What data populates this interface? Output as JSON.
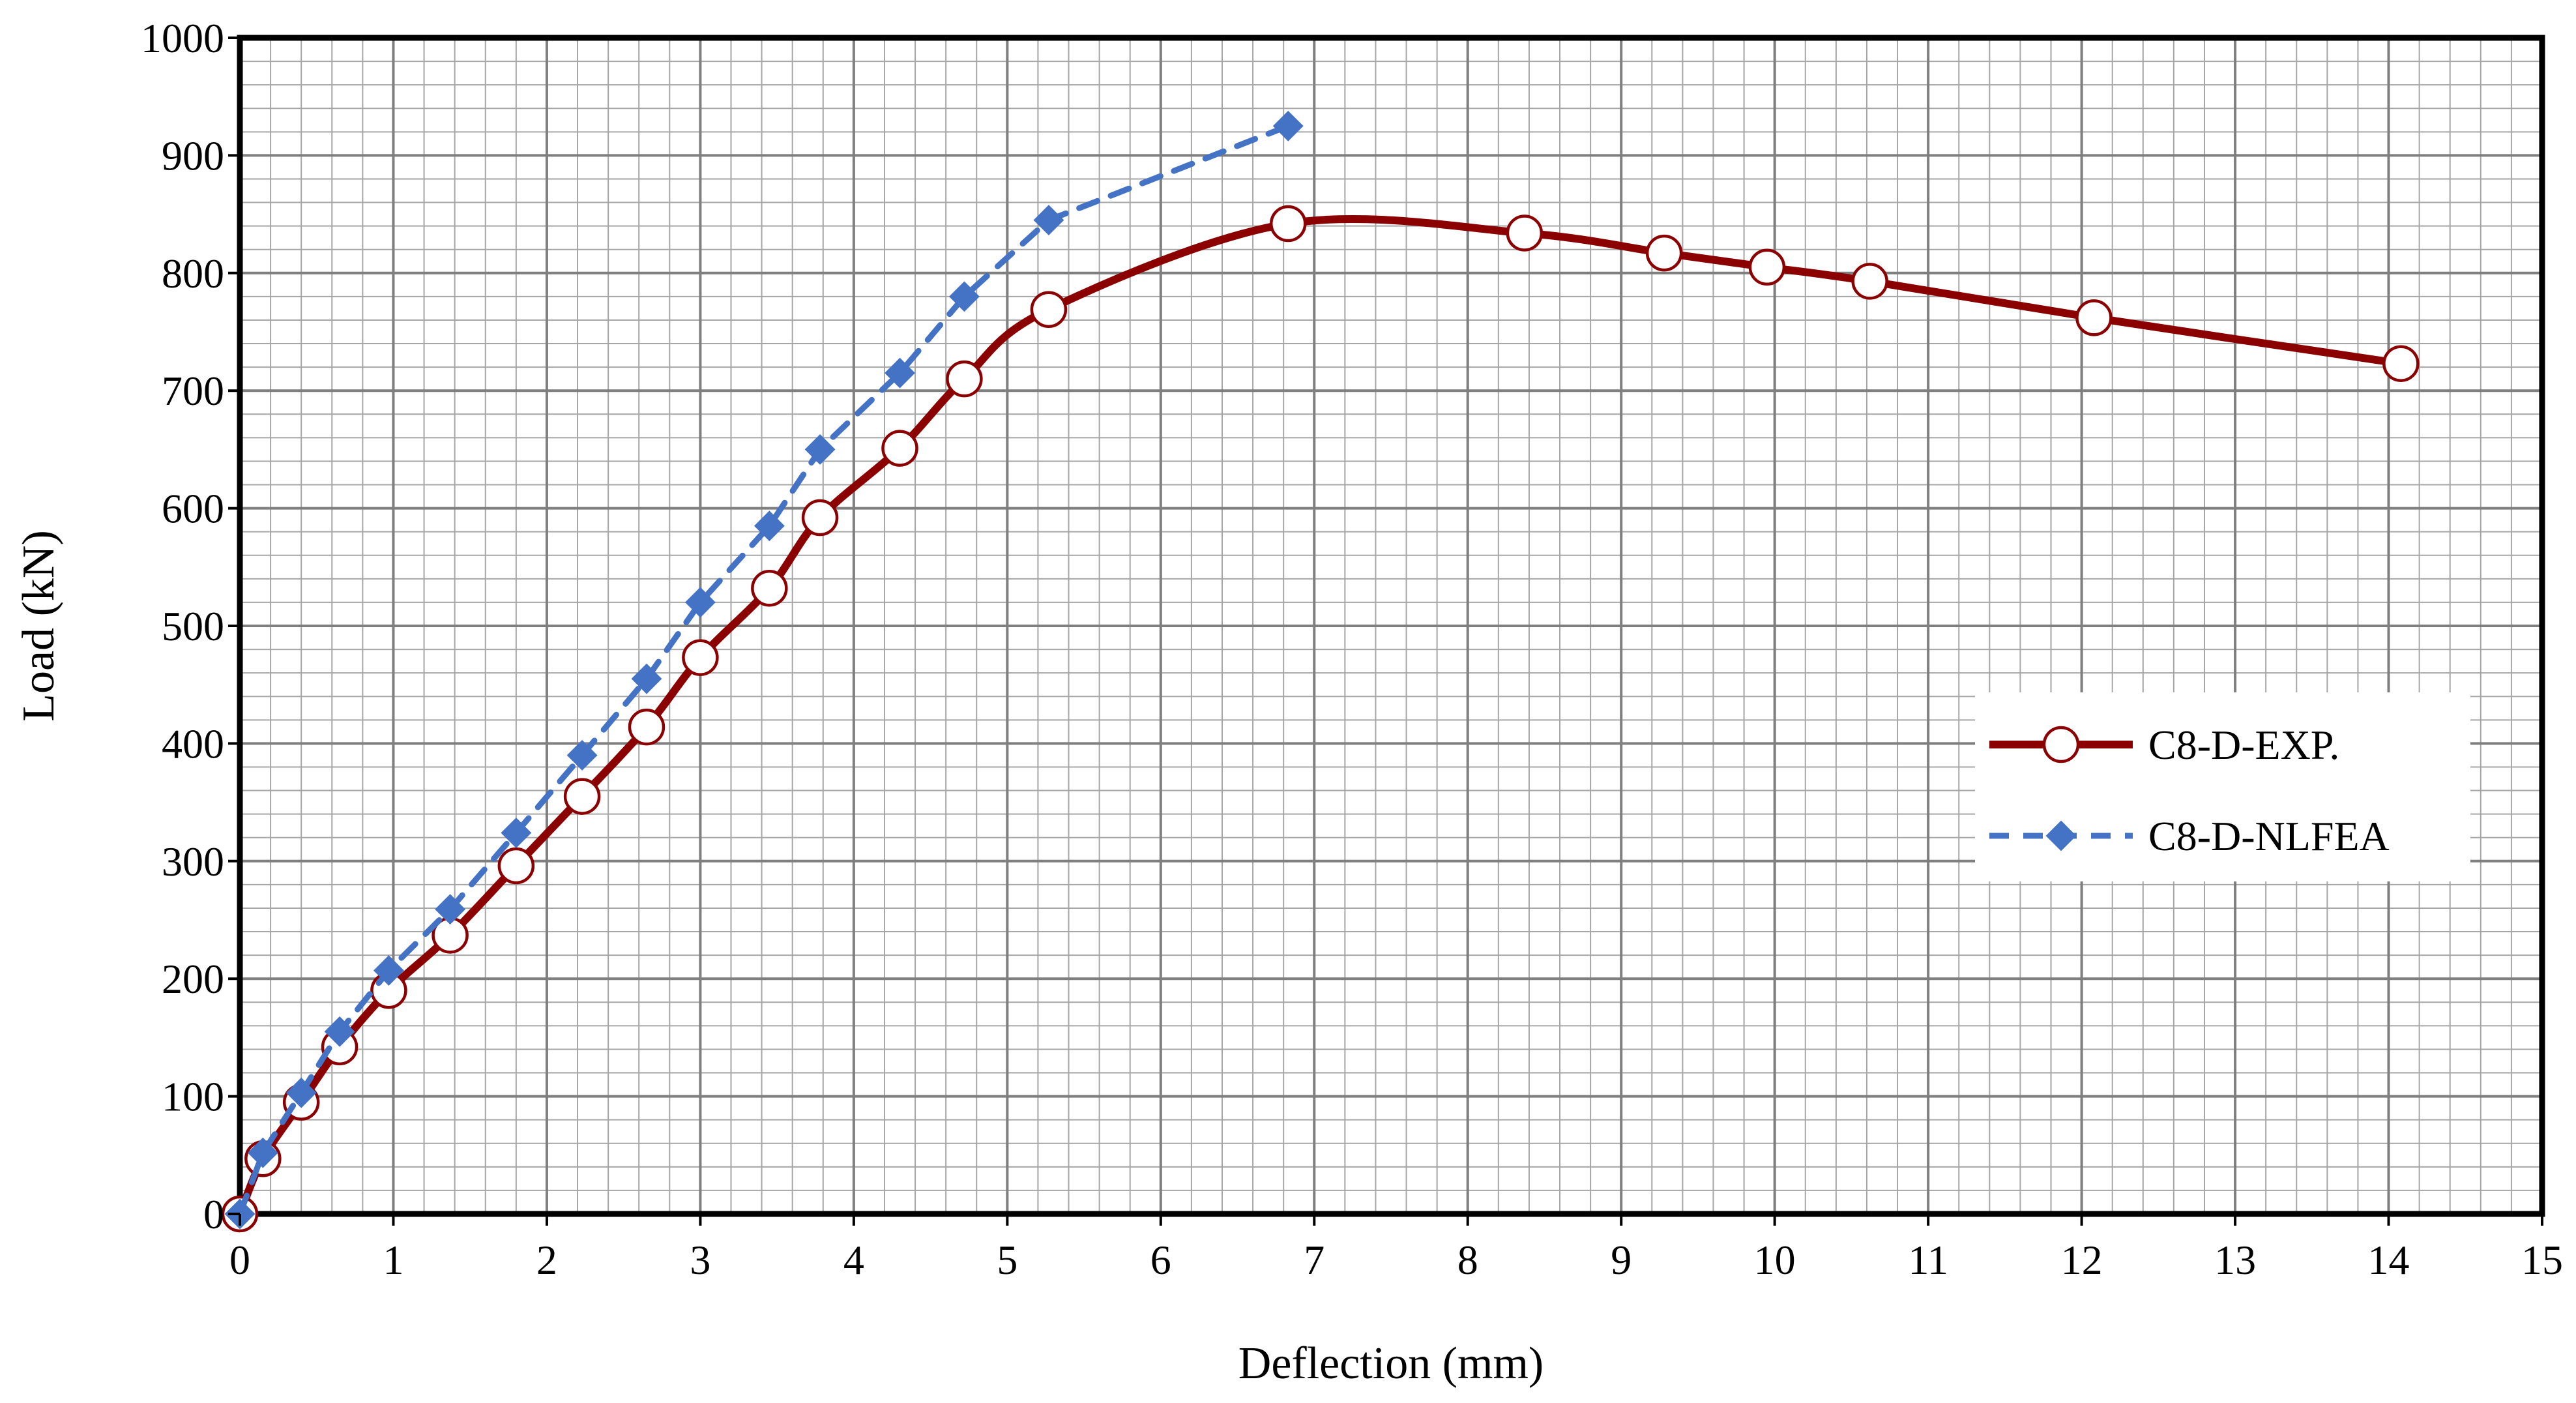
{
  "chart_data": {
    "type": "line",
    "title": "",
    "xlabel": "Deflection (mm)",
    "ylabel": "Load (kN)",
    "xlim": [
      0,
      15
    ],
    "ylim": [
      0,
      1000
    ],
    "x_ticks": [
      0,
      1,
      2,
      3,
      4,
      5,
      6,
      7,
      8,
      9,
      10,
      11,
      12,
      13,
      14,
      15
    ],
    "y_ticks": [
      0,
      100,
      200,
      300,
      400,
      500,
      600,
      700,
      800,
      900,
      1000
    ],
    "x_tick_labels": [
      "0",
      "1",
      "2",
      "3",
      "4",
      "5",
      "6",
      "7",
      "8",
      "9",
      "10",
      "11",
      "12",
      "13",
      "14",
      "15"
    ],
    "y_tick_labels": [
      "0",
      "100",
      "200",
      "300",
      "400",
      "500",
      "600",
      "700",
      "800",
      "900",
      "1000"
    ],
    "grid": true,
    "minor_grid_divisions": 5,
    "legend_position": "right",
    "series": [
      {
        "name": "C8-D-EXP.",
        "color": "#8B0000",
        "line_style": "solid",
        "marker": "open-circle",
        "smooth": true,
        "points": [
          [
            0.0,
            0
          ],
          [
            0.15,
            47
          ],
          [
            0.4,
            95
          ],
          [
            0.65,
            142
          ],
          [
            0.97,
            190
          ],
          [
            1.37,
            237
          ],
          [
            1.8,
            296
          ],
          [
            2.23,
            355
          ],
          [
            2.65,
            414
          ],
          [
            3.0,
            473
          ],
          [
            3.45,
            532
          ],
          [
            3.78,
            592
          ],
          [
            4.3,
            651
          ],
          [
            4.72,
            710
          ],
          [
            5.27,
            769
          ],
          [
            6.83,
            842
          ],
          [
            8.37,
            834
          ],
          [
            9.28,
            817
          ],
          [
            9.95,
            805
          ],
          [
            10.62,
            793
          ],
          [
            12.08,
            762
          ],
          [
            14.08,
            723
          ]
        ]
      },
      {
        "name": "C8-D-NLFEA",
        "color": "#4472C4",
        "line_style": "dashed",
        "marker": "diamond",
        "smooth": false,
        "points": [
          [
            0.0,
            0
          ],
          [
            0.15,
            52
          ],
          [
            0.4,
            103
          ],
          [
            0.65,
            155
          ],
          [
            0.97,
            207
          ],
          [
            1.37,
            259
          ],
          [
            1.8,
            324
          ],
          [
            2.23,
            390
          ],
          [
            2.65,
            455
          ],
          [
            3.0,
            520
          ],
          [
            3.45,
            585
          ],
          [
            3.78,
            650
          ],
          [
            4.3,
            715
          ],
          [
            4.72,
            780
          ],
          [
            5.27,
            845
          ],
          [
            6.83,
            925
          ]
        ]
      }
    ]
  }
}
